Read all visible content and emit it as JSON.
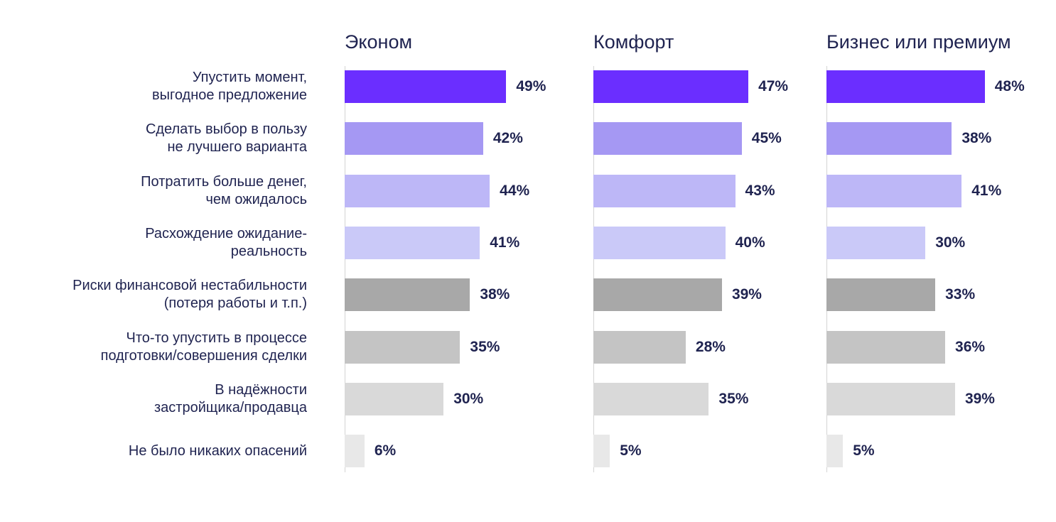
{
  "chart_data": {
    "type": "bar",
    "orientation": "horizontal",
    "unit": "%",
    "xlim": [
      0,
      100
    ],
    "grid": false,
    "categories": [
      "Упустить момент,\nвыгодное предложение",
      "Сделать выбор в пользу\nне лучшего варианта",
      "Потратить больше денег,\nчем ожидалось",
      "Расхождение ожидание-\nреальность",
      "Риски финансовой нестабильности\n(потеря работы и т.п.)",
      "Что-то упустить в процессе\nподготовки/совершения сделки",
      "В надёжности\nзастройщика/продавца",
      "Не было никаких опасений"
    ],
    "colors": [
      "#6b2eff",
      "#a598f3",
      "#bdb7f7",
      "#cac9f8",
      "#a8a8a8",
      "#c4c4c4",
      "#d9d9d9",
      "#e8e8e8"
    ],
    "series": [
      {
        "name": "Эконом",
        "values": [
          49,
          42,
          44,
          41,
          38,
          35,
          30,
          6
        ],
        "labels": [
          "49%",
          "42%",
          "44%",
          "41%",
          "38%",
          "35%",
          "30%",
          "6%"
        ]
      },
      {
        "name": "Комфорт",
        "values": [
          47,
          45,
          43,
          40,
          39,
          28,
          35,
          5
        ],
        "labels": [
          "47%",
          "45%",
          "43%",
          "40%",
          "39%",
          "28%",
          "35%",
          "5%"
        ]
      },
      {
        "name": "Бизнес или премиум",
        "values": [
          48,
          38,
          41,
          30,
          33,
          36,
          39,
          5
        ],
        "labels": [
          "48%",
          "38%",
          "41%",
          "30%",
          "33%",
          "36%",
          "39%",
          "5%"
        ]
      }
    ]
  }
}
